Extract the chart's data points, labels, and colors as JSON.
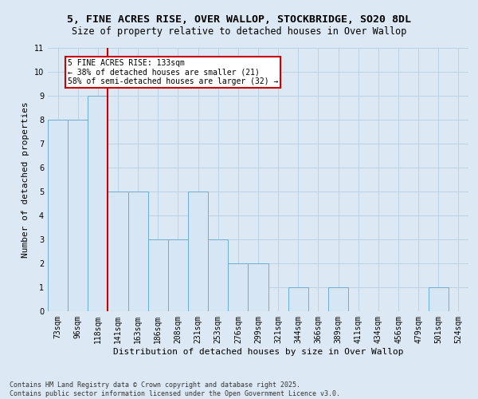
{
  "title_line1": "5, FINE ACRES RISE, OVER WALLOP, STOCKBRIDGE, SO20 8DL",
  "title_line2": "Size of property relative to detached houses in Over Wallop",
  "xlabel": "Distribution of detached houses by size in Over Wallop",
  "ylabel": "Number of detached properties",
  "categories": [
    "73sqm",
    "96sqm",
    "118sqm",
    "141sqm",
    "163sqm",
    "186sqm",
    "208sqm",
    "231sqm",
    "253sqm",
    "276sqm",
    "299sqm",
    "321sqm",
    "344sqm",
    "366sqm",
    "389sqm",
    "411sqm",
    "434sqm",
    "456sqm",
    "479sqm",
    "501sqm",
    "524sqm"
  ],
  "values": [
    8,
    8,
    9,
    5,
    5,
    3,
    3,
    5,
    3,
    2,
    2,
    0,
    1,
    0,
    1,
    0,
    0,
    0,
    0,
    1,
    0
  ],
  "bar_color": "#d6e6f5",
  "bar_edge_color": "#6aaed6",
  "grid_color": "#b8cfe0",
  "background_color": "#dce9f5",
  "red_line_index": 2,
  "annotation_text": "5 FINE ACRES RISE: 133sqm\n← 38% of detached houses are smaller (21)\n58% of semi-detached houses are larger (32) →",
  "annotation_box_color": "#ffffff",
  "annotation_box_edge": "#cc0000",
  "ylim": [
    0,
    11
  ],
  "yticks": [
    0,
    1,
    2,
    3,
    4,
    5,
    6,
    7,
    8,
    9,
    10,
    11
  ],
  "footnote": "Contains HM Land Registry data © Crown copyright and database right 2025.\nContains public sector information licensed under the Open Government Licence v3.0.",
  "title_fontsize": 9.5,
  "subtitle_fontsize": 8.5,
  "axis_label_fontsize": 8,
  "tick_fontsize": 7,
  "annotation_fontsize": 7,
  "ylabel_fontsize": 8
}
